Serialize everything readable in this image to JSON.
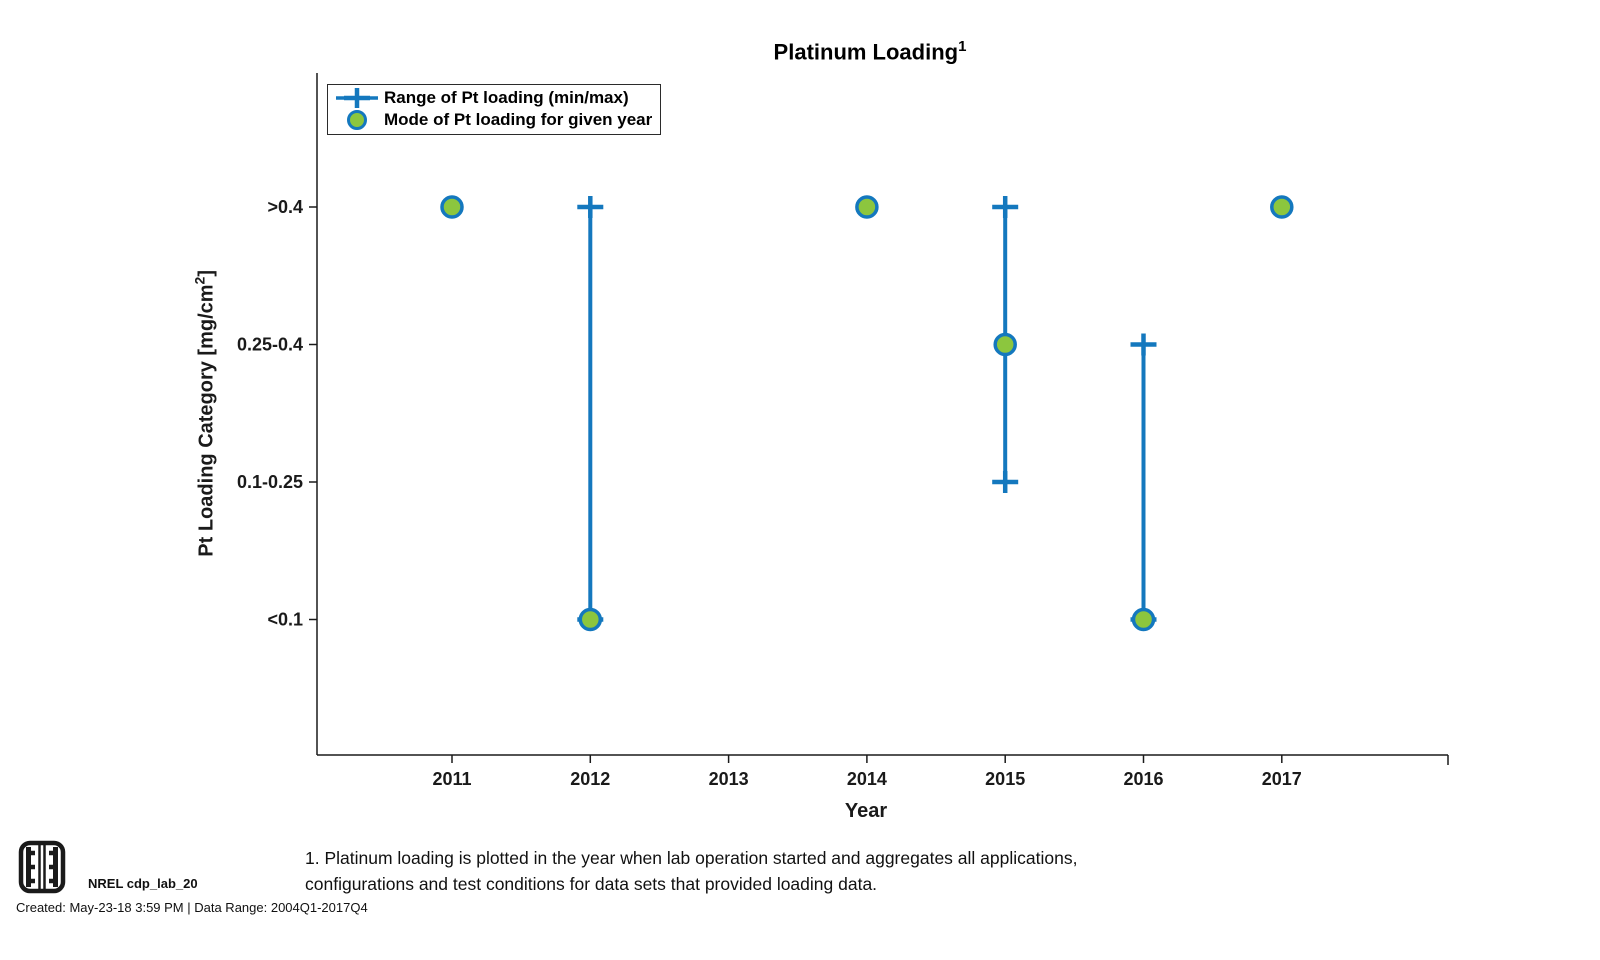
{
  "title": {
    "text": "Platinum Loading",
    "superscript": "1"
  },
  "legend": {
    "items": [
      {
        "kind": "range",
        "label": "Range of Pt loading (min/max)"
      },
      {
        "kind": "mode",
        "label": "Mode of Pt loading for given year"
      }
    ]
  },
  "colors": {
    "line_blue": "#1478BE",
    "mode_green": "#8CC63E",
    "axis": "#1a1a1a"
  },
  "chart_data": {
    "type": "scatter",
    "title": "Platinum Loading",
    "xlabel": "Year",
    "ylabel": "Pt Loading Category [mg/cm2]",
    "ylabel_parts": {
      "pre": "Pt Loading Category [mg/cm",
      "sup": "2",
      "post": "]"
    },
    "y_categories": [
      "<0.1",
      "0.1-0.25",
      "0.25-0.4",
      ">0.4"
    ],
    "x_ticks": [
      2011,
      2012,
      2013,
      2014,
      2015,
      2016,
      2017
    ],
    "xlim": [
      2010,
      2018.2
    ],
    "grid": false,
    "legend_position": "top-left",
    "series": [
      {
        "name": "Range of Pt loading (min/max)",
        "kind": "range",
        "points": [
          {
            "year": 2012,
            "min": "<0.1",
            "max": ">0.4"
          },
          {
            "year": 2015,
            "min": "0.1-0.25",
            "max": ">0.4"
          },
          {
            "year": 2016,
            "min": "<0.1",
            "max": "0.25-0.4"
          }
        ]
      },
      {
        "name": "Mode of Pt loading for given year",
        "kind": "mode",
        "points": [
          {
            "year": 2011,
            "value": ">0.4"
          },
          {
            "year": 2012,
            "value": "<0.1"
          },
          {
            "year": 2014,
            "value": ">0.4"
          },
          {
            "year": 2015,
            "value": "0.25-0.4"
          },
          {
            "year": 2016,
            "value": "<0.1"
          },
          {
            "year": 2017,
            "value": ">0.4"
          }
        ]
      }
    ]
  },
  "footnote": {
    "line1": "1. Platinum loading is plotted in the year when lab operation started and aggregates all applications,",
    "line2": "configurations and test conditions for data sets that provided loading data."
  },
  "footer": {
    "logo": "fuel-cell-stack-logo",
    "label": "NREL cdp_lab_20",
    "created": "Created: May-23-18  3:59 PM | Data Range: 2004Q1-2017Q4"
  }
}
